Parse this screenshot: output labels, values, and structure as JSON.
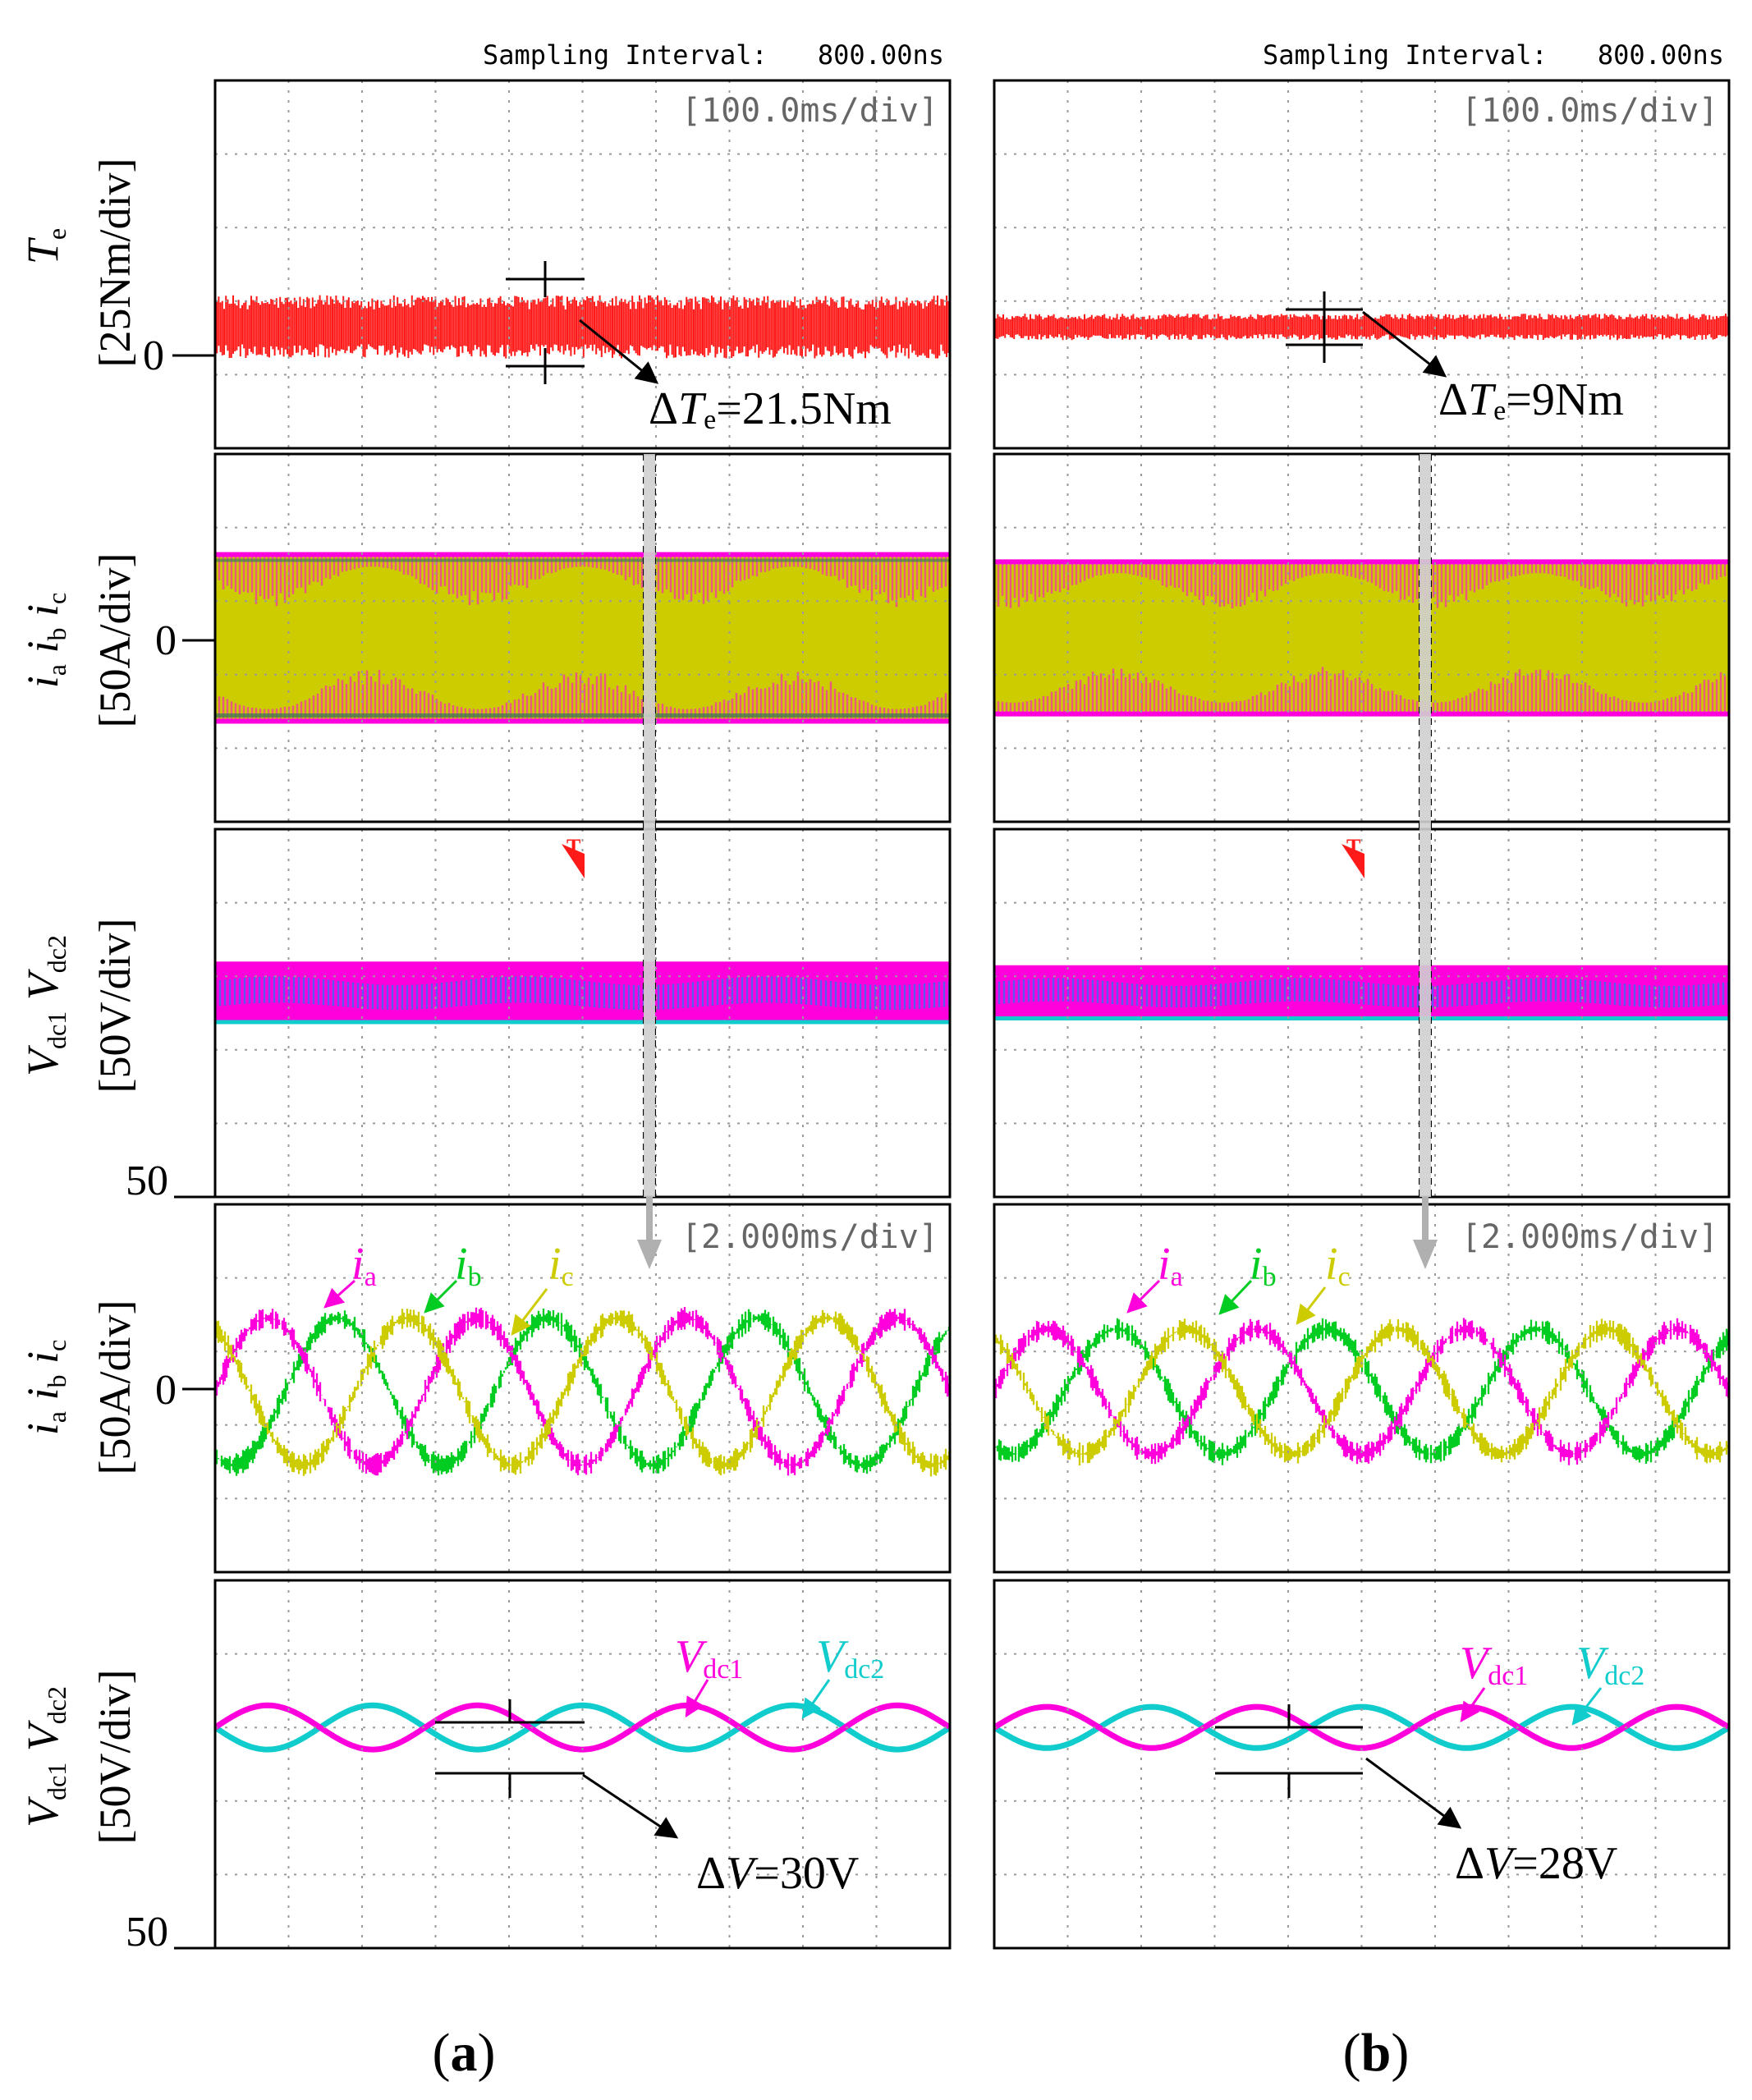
{
  "colors": {
    "te": "#ff1a1a",
    "ia": "#ff00dd",
    "ib": "#00cc22",
    "ic": "#cccc00",
    "vdc1": "#ff00dd",
    "vdc2": "#11cccc",
    "vdc_mix": "#4466ee",
    "grid": "#9a9a9a",
    "arrow": "#b8b8b8",
    "ink": "#000000"
  },
  "header": {
    "a": {
      "label": "Sampling Interval:",
      "value": "800.00ns"
    },
    "b": {
      "label": "Sampling Interval:",
      "value": "800.00ns"
    }
  },
  "timebase": {
    "slow": "[100.0ms/div]",
    "fast": "[2.000ms/div]"
  },
  "axes": {
    "te": {
      "sym": "T",
      "sub": "e",
      "unit": "[25Nm/div]",
      "zero": "0"
    },
    "iabc": {
      "s1": "i",
      "u1": "a",
      "s2": "i",
      "u2": "b",
      "s3": "i",
      "u3": "c",
      "unit": "[50A/div]",
      "zero": "0"
    },
    "vdc": {
      "s1": "V",
      "u1": "dc1",
      "s2": "V",
      "u2": "dc2",
      "unit": "[50V/div]",
      "bottom": "50"
    }
  },
  "panels": {
    "a": {
      "caption": "a",
      "dte": "21.5Nm",
      "dv": "30V"
    },
    "b": {
      "caption": "b",
      "dte": "9Nm",
      "dv": "28V"
    }
  },
  "labels": {
    "ia": {
      "sym": "i",
      "sub": "a"
    },
    "ib": {
      "sym": "i",
      "sub": "b"
    },
    "ic": {
      "sym": "i",
      "sub": "c"
    },
    "vdc1": {
      "sym": "V",
      "sub": "dc1"
    },
    "vdc2": {
      "sym": "V",
      "sub": "dc2"
    },
    "delta": "Δ",
    "dte_sym": "T",
    "dte_sub": "e",
    "dv_sym": "V",
    "trigger": "T"
  },
  "chart_data": [
    {
      "id": "a-Te",
      "type": "line",
      "xlabel": "",
      "ylabel": "Te [25Nm/div]",
      "xdivs": 10,
      "ydivs": 5,
      "time_per_div": "100.0ms",
      "series": [
        {
          "name": "Te",
          "mean_div": 0.4,
          "ripple_div": 0.86
        }
      ],
      "annotation": "ΔTe=21.5Nm"
    },
    {
      "id": "a-iabc-slow",
      "type": "area",
      "ylabel": "ia ib ic [50A/div]",
      "xdivs": 10,
      "ydivs": 5,
      "time_per_div": "100.0ms",
      "series": [
        {
          "name": "ia ib ic envelope",
          "amplitude_div": 1.1
        }
      ]
    },
    {
      "id": "a-vdc-slow",
      "type": "area",
      "ylabel": "Vdc1 Vdc2 [50V/div]",
      "xdivs": 10,
      "ydivs": 5,
      "time_per_div": "100.0ms",
      "series": [
        {
          "name": "Vdc1/Vdc2 band",
          "level_div": 2.8,
          "band_div": 0.8
        }
      ]
    },
    {
      "id": "a-iabc-fast",
      "type": "line",
      "ylabel": "ia ib ic [50A/div]",
      "xdivs": 10,
      "ydivs": 5,
      "time_per_div": "2.000ms",
      "cycles": 3.5,
      "series": [
        {
          "name": "ia",
          "amplitude_div": 1.0,
          "phase_deg": 0
        },
        {
          "name": "ib",
          "amplitude_div": 1.0,
          "phase_deg": -120
        },
        {
          "name": "ic",
          "amplitude_div": 1.0,
          "phase_deg": 120
        }
      ]
    },
    {
      "id": "a-vdc-fast",
      "type": "line",
      "ylabel": "Vdc1 Vdc2 [50V/div]",
      "xdivs": 10,
      "ydivs": 5,
      "time_per_div": "2.000ms",
      "cycles": 3.5,
      "series": [
        {
          "name": "Vdc1",
          "level_div": 3.0,
          "amplitude_div": 0.3,
          "phase_deg": 0
        },
        {
          "name": "Vdc2",
          "level_div": 3.0,
          "amplitude_div": 0.3,
          "phase_deg": 180
        }
      ],
      "annotation": "ΔV=30V"
    },
    {
      "id": "b-Te",
      "type": "line",
      "xlabel": "",
      "ylabel": "Te [25Nm/div]",
      "xdivs": 10,
      "ydivs": 5,
      "time_per_div": "100.0ms",
      "series": [
        {
          "name": "Te",
          "mean_div": 0.4,
          "ripple_div": 0.36
        }
      ],
      "annotation": "ΔTe=9Nm"
    },
    {
      "id": "b-iabc-slow",
      "type": "area",
      "ylabel": "ia ib ic [50A/div]",
      "xdivs": 10,
      "ydivs": 5,
      "time_per_div": "100.0ms",
      "series": [
        {
          "name": "ia ib ic envelope",
          "amplitude_div": 1.0
        }
      ]
    },
    {
      "id": "b-vdc-slow",
      "type": "area",
      "ylabel": "Vdc1 Vdc2 [50V/div]",
      "xdivs": 10,
      "ydivs": 5,
      "time_per_div": "100.0ms",
      "series": [
        {
          "name": "Vdc1/Vdc2 band",
          "level_div": 2.8,
          "band_div": 0.7
        }
      ]
    },
    {
      "id": "b-iabc-fast",
      "type": "line",
      "ylabel": "ia ib ic [50A/div]",
      "xdivs": 10,
      "ydivs": 5,
      "time_per_div": "2.000ms",
      "cycles": 3.5,
      "series": [
        {
          "name": "ia",
          "amplitude_div": 0.85,
          "phase_deg": 0
        },
        {
          "name": "ib",
          "amplitude_div": 0.85,
          "phase_deg": -120
        },
        {
          "name": "ic",
          "amplitude_div": 0.85,
          "phase_deg": 120
        }
      ]
    },
    {
      "id": "b-vdc-fast",
      "type": "line",
      "ylabel": "Vdc1 Vdc2 [50V/div]",
      "xdivs": 10,
      "ydivs": 5,
      "time_per_div": "2.000ms",
      "cycles": 3.5,
      "series": [
        {
          "name": "Vdc1",
          "level_div": 3.0,
          "amplitude_div": 0.28,
          "phase_deg": 0
        },
        {
          "name": "Vdc2",
          "level_div": 3.0,
          "amplitude_div": 0.28,
          "phase_deg": 180
        }
      ],
      "annotation": "ΔV=28V"
    }
  ]
}
